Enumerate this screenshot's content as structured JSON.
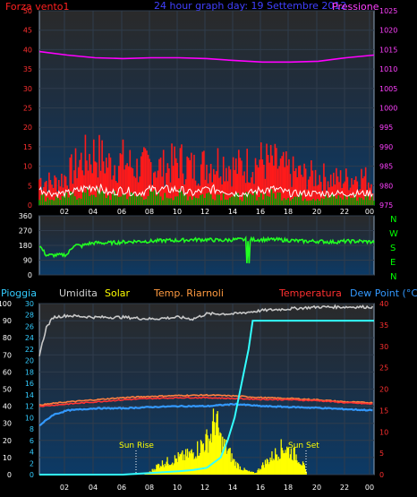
{
  "header": {
    "wind_label": "Forza vento1",
    "title": "24 hour graph day: 19 Settembre 2012",
    "pressure_label": "Pressione"
  },
  "bottom_labels": {
    "rain": "Pioggia",
    "humidity": "Umidita",
    "solar": "Solar",
    "temp_hot": "Temp. Riarnoli",
    "temperature": "Temperatura",
    "dewpoint": "Dew Point (°C)"
  },
  "compass": [
    "N",
    "W",
    "S",
    "E",
    "N"
  ],
  "annotations": {
    "sun_rise": "Sun Rise",
    "sun_set": "Sun Set"
  },
  "colors": {
    "wind": "#ff1a1a",
    "gust": "#ffffff",
    "wind_avg": "#00a000",
    "pressure": "#ff00ff",
    "direction": "#22ff22",
    "humidity": "#c8c8c8",
    "solar": "#ffff00",
    "temperature": "#ff3333",
    "temp_hot": "#ff8040",
    "dewpoint": "#3399ff",
    "rain": "#33ffff"
  },
  "chart_data": [
    {
      "type": "line",
      "x_ticks": [
        "02",
        "04",
        "06",
        "08",
        "10",
        "12",
        "14",
        "16",
        "18",
        "20",
        "22",
        "00"
      ],
      "yleft": {
        "ticks": [
          0,
          5,
          10,
          15,
          20,
          25,
          30,
          35,
          40,
          45,
          50
        ],
        "range": [
          0,
          50
        ]
      },
      "yright": {
        "ticks": [
          975,
          980,
          985,
          990,
          995,
          1000,
          1005,
          1010,
          1015,
          1020,
          1025
        ],
        "range": [
          975,
          1025
        ]
      },
      "series": [
        {
          "key": "pressure",
          "axis": "right",
          "x": [
            0,
            2,
            4,
            6,
            8,
            10,
            12,
            14,
            16,
            18,
            20,
            22,
            24
          ],
          "y": [
            1014.5,
            1013.6,
            1012.9,
            1012.7,
            1012.9,
            1012.9,
            1012.7,
            1012.2,
            1011.8,
            1011.8,
            1012.0,
            1012.9,
            1013.6
          ]
        },
        {
          "key": "wind",
          "axis": "left",
          "x": [
            0,
            1,
            2,
            3,
            4,
            5,
            6,
            7,
            8,
            9,
            10,
            11,
            12,
            13,
            14,
            15,
            16,
            17,
            18,
            19,
            20,
            21,
            22,
            23,
            24
          ],
          "y": [
            7,
            6,
            8,
            12,
            14,
            11,
            12,
            10,
            11,
            10,
            12,
            10,
            11,
            12,
            10,
            11,
            12,
            11,
            9,
            8,
            8,
            7,
            7,
            8,
            6
          ]
        },
        {
          "key": "gust",
          "axis": "left",
          "x": [
            0,
            1,
            2,
            3,
            4,
            5,
            6,
            7,
            8,
            9,
            10,
            11,
            12,
            13,
            14,
            15,
            16,
            17,
            18,
            19,
            20,
            21,
            22,
            23,
            24
          ],
          "y": [
            4,
            3,
            3,
            4,
            5,
            3,
            4,
            3,
            4,
            4,
            4,
            3,
            4,
            4,
            3,
            3,
            4,
            4,
            3,
            3,
            3,
            3,
            3,
            3,
            3
          ]
        },
        {
          "key": "wind_avg",
          "axis": "left",
          "x": [
            0,
            1,
            2,
            3,
            4,
            5,
            6,
            7,
            8,
            9,
            10,
            11,
            12,
            13,
            14,
            15,
            16,
            17,
            18,
            19,
            20,
            21,
            22,
            23,
            24
          ],
          "y": [
            2,
            1.5,
            2,
            2.5,
            3,
            2,
            2.5,
            2,
            2.5,
            2,
            2.5,
            2,
            2.5,
            2.5,
            2,
            2,
            2.5,
            2.5,
            2,
            1.8,
            1.8,
            1.8,
            1.8,
            1.8,
            1.8
          ]
        }
      ]
    },
    {
      "type": "line",
      "x_ticks": [
        "02",
        "04",
        "06",
        "08",
        "10",
        "12",
        "14",
        "16",
        "18",
        "20",
        "22",
        "00"
      ],
      "yleft": {
        "ticks": [
          0,
          90,
          180,
          270,
          360
        ],
        "range": [
          0,
          360
        ]
      },
      "series": [
        {
          "key": "direction",
          "axis": "left",
          "x": [
            0,
            0.5,
            1,
            1.5,
            2,
            2.5,
            3,
            3.5,
            4,
            5,
            6,
            7,
            8,
            9,
            10,
            11,
            12,
            13,
            14,
            15,
            16,
            17,
            18,
            19,
            20,
            21,
            22,
            23,
            24
          ],
          "y": [
            180,
            120,
            120,
            120,
            125,
            185,
            175,
            190,
            195,
            195,
            200,
            205,
            205,
            210,
            210,
            215,
            215,
            210,
            215,
            215,
            215,
            215,
            210,
            205,
            205,
            200,
            205,
            205,
            200
          ]
        }
      ]
    },
    {
      "type": "line",
      "x_ticks": [
        "02",
        "04",
        "06",
        "08",
        "10",
        "12",
        "14",
        "16",
        "18",
        "20",
        "22",
        "00"
      ],
      "yleft": {
        "ticks": [
          0,
          10,
          20,
          30,
          40,
          50,
          60,
          70,
          80,
          90,
          100
        ],
        "range": [
          0,
          100
        ]
      },
      "yleft2": {
        "ticks": [
          0,
          2,
          4,
          6,
          8,
          10,
          12,
          14,
          16,
          18,
          20,
          22,
          24,
          26,
          28,
          30
        ],
        "range": [
          0,
          30
        ]
      },
      "yright": {
        "ticks": [
          0,
          5,
          10,
          15,
          20,
          25,
          30,
          35,
          40
        ],
        "range": [
          0,
          40
        ]
      },
      "series": [
        {
          "key": "humidity",
          "axis": "left",
          "x": [
            0,
            0.5,
            1,
            2,
            4,
            6,
            8,
            10,
            11,
            12,
            14,
            16,
            18,
            20,
            22,
            24
          ],
          "y": [
            70,
            86,
            92,
            93,
            92,
            92,
            91,
            92,
            91,
            94,
            94,
            96,
            97,
            98,
            98,
            98
          ]
        },
        {
          "key": "temperature",
          "axis": "right",
          "x": [
            0,
            2,
            4,
            6,
            8,
            10,
            12,
            14,
            16,
            18,
            20,
            22,
            24
          ],
          "y": [
            16.0,
            16.5,
            17.0,
            17.5,
            17.8,
            18.0,
            18.0,
            17.8,
            17.6,
            17.5,
            17.3,
            16.8,
            16.5
          ]
        },
        {
          "key": "temp_hot",
          "axis": "right",
          "x": [
            0,
            2,
            4,
            6,
            8,
            10,
            12,
            14,
            16,
            18,
            20,
            22,
            24
          ],
          "y": [
            16.3,
            17.0,
            17.5,
            18.0,
            18.3,
            18.5,
            18.6,
            18.4,
            18.0,
            17.8,
            17.5,
            17.0,
            16.8
          ]
        },
        {
          "key": "dewpoint",
          "axis": "right",
          "x": [
            0,
            1,
            2,
            4,
            6,
            8,
            10,
            12,
            14,
            16,
            18,
            20,
            22,
            24
          ],
          "y": [
            11.5,
            14.0,
            15.0,
            15.5,
            15.5,
            15.8,
            16.0,
            16.0,
            16.5,
            16.0,
            15.8,
            15.6,
            15.3,
            15.0
          ]
        },
        {
          "key": "rain",
          "axis": "left2",
          "x": [
            0,
            6,
            8,
            10,
            11,
            12,
            13,
            13.5,
            14,
            14.5,
            15,
            15.3,
            16,
            24
          ],
          "y": [
            0,
            0,
            0.3,
            0.6,
            0.8,
            1.2,
            3,
            6,
            10,
            16,
            22,
            27,
            27,
            27
          ]
        },
        {
          "key": "solar",
          "axis": "left",
          "x": [
            7.5,
            8,
            8.5,
            9,
            9.5,
            10,
            10.5,
            11,
            11.5,
            12,
            12.3,
            12.6,
            13,
            13.5,
            14,
            14.5,
            15,
            15.5,
            16,
            16.5,
            17,
            17.5,
            18,
            18.5,
            19,
            19.2
          ],
          "y": [
            0,
            2,
            6,
            8,
            9,
            11,
            12,
            14,
            18,
            22,
            25,
            37,
            22,
            16,
            8,
            4,
            2,
            1,
            6,
            10,
            14,
            18,
            15,
            12,
            5,
            0
          ]
        }
      ]
    }
  ]
}
